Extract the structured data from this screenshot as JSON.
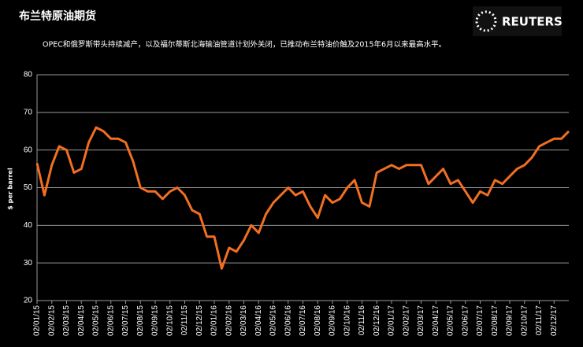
{
  "chart_data": {
    "type": "line",
    "title": "布兰特原油期货",
    "subtitle": "OPEC和俄罗斯带头持续减产，以及福尔蒂斯北海输油管道计划外关闭，已推动布兰特油价触及2015年6月以来最高水平。",
    "brand": "REUTERS",
    "y_label": "$ per barrel",
    "categories": [
      "02/01/15",
      null,
      "02/02/15",
      null,
      "02/03/15",
      null,
      "02/04/15",
      null,
      "02/05/15",
      null,
      "02/06/15",
      null,
      "02/07/15",
      null,
      "02/08/15",
      null,
      "02/09/15",
      null,
      "02/10/15",
      null,
      "02/11/15",
      null,
      "02/12/15",
      null,
      "02/01/16",
      null,
      "02/02/16",
      null,
      "02/03/16",
      null,
      "02/04/16",
      null,
      "02/05/16",
      null,
      "02/06/16",
      null,
      "02/07/16",
      null,
      "02/08/16",
      null,
      "02/09/16",
      null,
      "02/10/16",
      null,
      "02/11/16",
      null,
      "02/12/16",
      null,
      "02/01/17",
      null,
      "02/02/17",
      null,
      "02/03/17",
      null,
      "02/04/17",
      null,
      "02/05/17",
      null,
      "02/06/17",
      null,
      "02/07/17",
      null,
      "02/08/17",
      null,
      "02/09/17",
      null,
      "02/10/17",
      null,
      "02/11/17",
      null,
      "02/12/17",
      null,
      null
    ],
    "series": [
      {
        "name": "Brent",
        "color": "#f26f21",
        "values": [
          56.5,
          48,
          56,
          61,
          60,
          54,
          55,
          62,
          66,
          65,
          63,
          63,
          62,
          57,
          50,
          49,
          49,
          47,
          49,
          50,
          48,
          44,
          43,
          37,
          37,
          28.5,
          34,
          33,
          36,
          40,
          38,
          43,
          46,
          48,
          50,
          48,
          49,
          45,
          42,
          48,
          46,
          47,
          50,
          52,
          46,
          45,
          54,
          55,
          56,
          55,
          56,
          56,
          56,
          51,
          53,
          55,
          51,
          52,
          49,
          46,
          49,
          48,
          52,
          51,
          53,
          55,
          56,
          58,
          61,
          62,
          63,
          63,
          65
        ]
      }
    ],
    "ylim": [
      20,
      80
    ],
    "yticks": [
      20,
      30,
      40,
      50,
      60,
      70,
      80
    ],
    "grid": true
  }
}
